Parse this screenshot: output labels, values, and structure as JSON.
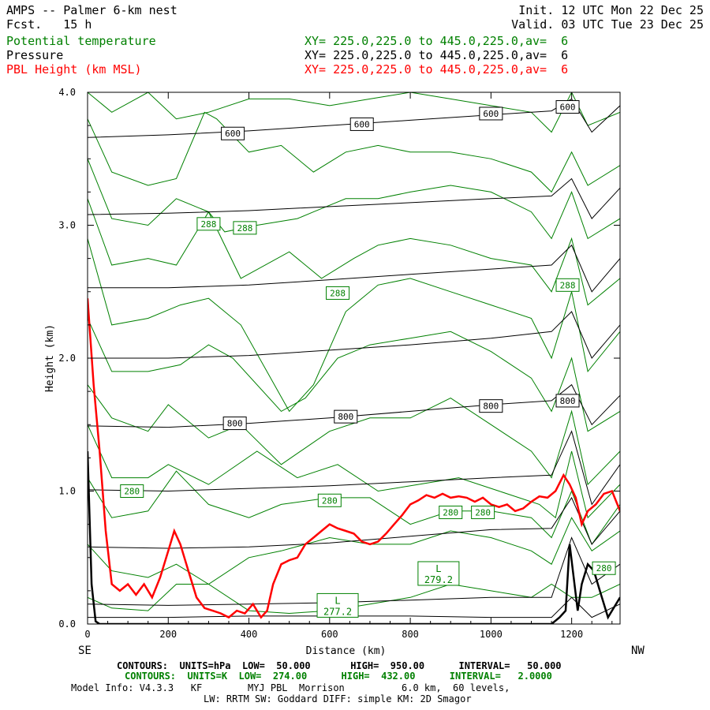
{
  "header": {
    "title": "AMPS -- Palmer 6-km nest",
    "fcst": "Fcst.   15 h",
    "init": "Init. 12 UTC Mon 22 Dec 25",
    "valid": "Valid. 03 UTC Tue 23 Dec 25",
    "fields": [
      {
        "name": "Potential temperature",
        "xy": "XY= 225.0,225.0 to 445.0,225.0,av=  6",
        "color": "#008000"
      },
      {
        "name": "Pressure",
        "xy": "XY= 225.0,225.0 to 445.0,225.0,av=  6",
        "color": "#000000"
      },
      {
        "name": "PBL Height (km MSL)",
        "xy": "XY= 225.0,225.0 to 445.0,225.0,av=  6",
        "color": "#ff0000"
      }
    ]
  },
  "chart_data": {
    "type": "line",
    "xlabel": "Distance (km)",
    "ylabel": "Height (km)",
    "xlim": [
      0,
      1320
    ],
    "ylim": [
      0.0,
      4.0
    ],
    "x_ticks": [
      0,
      200,
      400,
      600,
      800,
      1000,
      1200
    ],
    "y_ticks": [
      "0.0",
      "1.0",
      "2.0",
      "3.0",
      "4.0"
    ],
    "x_end_labels": {
      "left": "SE",
      "right": "NW"
    },
    "pressure_labels": [
      {
        "text": "600",
        "x": 360,
        "y": 3.69
      },
      {
        "text": "600",
        "x": 680,
        "y": 3.76
      },
      {
        "text": "600",
        "x": 1000,
        "y": 3.84
      },
      {
        "text": "600",
        "x": 1190,
        "y": 3.89
      },
      {
        "text": "800",
        "x": 365,
        "y": 1.51
      },
      {
        "text": "800",
        "x": 640,
        "y": 1.56
      },
      {
        "text": "800",
        "x": 1000,
        "y": 1.64
      },
      {
        "text": "800",
        "x": 1190,
        "y": 1.68
      }
    ],
    "theta_labels": [
      {
        "text": "288",
        "x": 300,
        "y": 3.01
      },
      {
        "text": "288",
        "x": 390,
        "y": 2.98
      },
      {
        "text": "288",
        "x": 620,
        "y": 2.49
      },
      {
        "text": "288",
        "x": 1190,
        "y": 2.55
      },
      {
        "text": "280",
        "x": 110,
        "y": 1.0
      },
      {
        "text": "280",
        "x": 600,
        "y": 0.93
      },
      {
        "text": "280",
        "x": 900,
        "y": 0.84
      },
      {
        "text": "280",
        "x": 980,
        "y": 0.84
      },
      {
        "text": "280",
        "x": 1280,
        "y": 0.42
      }
    ],
    "lows": [
      {
        "letter": "L",
        "value": "279.2",
        "x": 870,
        "y": 0.38
      },
      {
        "letter": "L",
        "value": "277.2",
        "x": 620,
        "y": 0.14
      }
    ],
    "pressure_levels": [
      {
        "x": [
          0,
          200,
          400,
          600,
          800,
          1000,
          1150,
          1200,
          1250,
          1320
        ],
        "y": [
          0.05,
          0.05,
          0.06,
          0.06,
          0.06,
          0.05,
          0.05,
          0.2,
          0.05,
          0.15
        ]
      },
      {
        "x": [
          0,
          200,
          400,
          600,
          800,
          1000,
          1150,
          1200,
          1250,
          1320
        ],
        "y": [
          0.15,
          0.14,
          0.15,
          0.16,
          0.18,
          0.2,
          0.2,
          0.65,
          0.3,
          0.45
        ]
      },
      {
        "x": [
          0,
          200,
          400,
          600,
          800,
          1000,
          1150,
          1200,
          1250,
          1320
        ],
        "y": [
          0.58,
          0.57,
          0.58,
          0.61,
          0.66,
          0.71,
          0.72,
          0.95,
          0.6,
          0.85
        ]
      },
      {
        "x": [
          0,
          200,
          400,
          600,
          800,
          1000,
          1150,
          1200,
          1250,
          1320
        ],
        "y": [
          1.01,
          1.0,
          1.02,
          1.04,
          1.07,
          1.1,
          1.12,
          1.45,
          0.9,
          1.2
        ]
      },
      {
        "x": [
          0,
          200,
          400,
          600,
          800,
          1000,
          1150,
          1200,
          1250,
          1320
        ],
        "y": [
          1.49,
          1.48,
          1.51,
          1.55,
          1.6,
          1.65,
          1.68,
          1.8,
          1.5,
          1.72
        ]
      },
      {
        "x": [
          0,
          200,
          400,
          600,
          800,
          1000,
          1150,
          1200,
          1250,
          1320
        ],
        "y": [
          2.0,
          2.0,
          2.02,
          2.06,
          2.1,
          2.15,
          2.2,
          2.35,
          2.0,
          2.25
        ]
      },
      {
        "x": [
          0,
          200,
          400,
          600,
          800,
          1000,
          1150,
          1200,
          1250,
          1320
        ],
        "y": [
          2.53,
          2.53,
          2.55,
          2.59,
          2.63,
          2.67,
          2.7,
          2.85,
          2.5,
          2.75
        ]
      },
      {
        "x": [
          0,
          200,
          400,
          600,
          800,
          1000,
          1150,
          1200,
          1250,
          1320
        ],
        "y": [
          3.08,
          3.09,
          3.11,
          3.14,
          3.17,
          3.2,
          3.22,
          3.35,
          3.05,
          3.28
        ]
      },
      {
        "x": [
          0,
          200,
          400,
          600,
          800,
          1000,
          1150,
          1200,
          1250,
          1320
        ],
        "y": [
          3.66,
          3.68,
          3.71,
          3.75,
          3.79,
          3.83,
          3.86,
          3.95,
          3.7,
          3.9
        ]
      }
    ],
    "theta_levels": [
      {
        "x": [
          0,
          60,
          150,
          220,
          300,
          400,
          500,
          600,
          700,
          800,
          900,
          1000,
          1100,
          1150,
          1200,
          1250,
          1320
        ],
        "y": [
          0.2,
          0.12,
          0.1,
          0.3,
          0.3,
          0.1,
          0.08,
          0.1,
          0.15,
          0.2,
          0.3,
          0.25,
          0.2,
          0.3,
          0.2,
          0.2,
          0.3
        ]
      },
      {
        "x": [
          0,
          60,
          150,
          220,
          300,
          400,
          480,
          600,
          700,
          800,
          900,
          1000,
          1100,
          1150,
          1200,
          1250,
          1320
        ],
        "y": [
          0.6,
          0.4,
          0.35,
          0.45,
          0.3,
          0.5,
          0.55,
          0.65,
          0.6,
          0.6,
          0.7,
          0.65,
          0.55,
          0.45,
          0.8,
          0.55,
          0.7
        ]
      },
      {
        "x": [
          0,
          60,
          150,
          220,
          300,
          400,
          480,
          600,
          700,
          800,
          900,
          1000,
          1100,
          1150,
          1200,
          1250,
          1320
        ],
        "y": [
          1.1,
          0.8,
          0.85,
          1.15,
          0.9,
          0.8,
          0.9,
          0.95,
          0.95,
          0.75,
          0.85,
          0.85,
          0.8,
          0.65,
          1.0,
          0.6,
          0.9
        ]
      },
      {
        "x": [
          0,
          60,
          150,
          200,
          300,
          420,
          520,
          620,
          720,
          820,
          920,
          1020,
          1120,
          1160,
          1200,
          1240,
          1320
        ],
        "y": [
          1.5,
          1.1,
          1.1,
          1.2,
          1.05,
          1.3,
          1.1,
          1.2,
          1.0,
          1.05,
          1.1,
          1.0,
          0.9,
          0.8,
          1.3,
          0.8,
          1.05
        ]
      },
      {
        "x": [
          0,
          60,
          150,
          200,
          300,
          380,
          480,
          600,
          700,
          800,
          900,
          1000,
          1100,
          1150,
          1200,
          1240,
          1320
        ],
        "y": [
          1.8,
          1.55,
          1.45,
          1.65,
          1.4,
          1.5,
          1.2,
          1.45,
          1.55,
          1.55,
          1.7,
          1.5,
          1.3,
          1.1,
          1.6,
          1.05,
          1.3
        ]
      },
      {
        "x": [
          0,
          60,
          150,
          230,
          300,
          360,
          480,
          540,
          620,
          700,
          800,
          900,
          1000,
          1100,
          1150,
          1200,
          1240,
          1320
        ],
        "y": [
          2.3,
          1.9,
          1.9,
          1.95,
          2.1,
          2.0,
          1.6,
          1.7,
          2.0,
          2.1,
          2.15,
          2.2,
          2.05,
          1.85,
          1.6,
          2.0,
          1.45,
          1.6
        ]
      },
      {
        "x": [
          0,
          60,
          150,
          230,
          300,
          380,
          500,
          560,
          640,
          720,
          800,
          900,
          1000,
          1100,
          1150,
          1200,
          1240,
          1320
        ],
        "y": [
          2.9,
          2.25,
          2.3,
          2.4,
          2.45,
          2.25,
          1.6,
          1.8,
          2.35,
          2.55,
          2.6,
          2.5,
          2.4,
          2.3,
          2.0,
          2.5,
          1.9,
          2.2
        ]
      },
      {
        "x": [
          0,
          60,
          150,
          220,
          300,
          380,
          500,
          580,
          660,
          720,
          800,
          900,
          1000,
          1100,
          1150,
          1200,
          1240,
          1320
        ],
        "y": [
          3.2,
          2.7,
          2.75,
          2.7,
          3.1,
          2.6,
          2.8,
          2.6,
          2.75,
          2.85,
          2.9,
          2.85,
          2.75,
          2.7,
          2.5,
          2.9,
          2.4,
          2.6
        ]
      },
      {
        "x": [
          0,
          60,
          150,
          220,
          300,
          340,
          420,
          520,
          560,
          640,
          720,
          800,
          900,
          1000,
          1100,
          1150,
          1200,
          1240,
          1320
        ],
        "y": [
          3.5,
          3.05,
          3.0,
          3.2,
          3.1,
          2.95,
          3.0,
          3.05,
          3.1,
          3.2,
          3.2,
          3.25,
          3.3,
          3.25,
          3.1,
          2.9,
          3.25,
          2.9,
          3.05
        ]
      },
      {
        "x": [
          0,
          60,
          150,
          220,
          290,
          320,
          400,
          480,
          560,
          640,
          720,
          800,
          900,
          1000,
          1100,
          1150,
          1200,
          1240,
          1320
        ],
        "y": [
          3.8,
          3.4,
          3.3,
          3.35,
          3.85,
          3.8,
          3.55,
          3.6,
          3.4,
          3.55,
          3.6,
          3.55,
          3.55,
          3.5,
          3.4,
          3.25,
          3.55,
          3.3,
          3.45
        ]
      },
      {
        "x": [
          0,
          60,
          150,
          220,
          300,
          400,
          500,
          600,
          700,
          800,
          900,
          1000,
          1100,
          1150,
          1200,
          1240,
          1320
        ],
        "y": [
          4.0,
          3.85,
          4.0,
          3.8,
          3.85,
          3.95,
          3.95,
          3.9,
          3.95,
          4.0,
          3.95,
          3.9,
          3.85,
          3.7,
          4.0,
          3.75,
          3.85
        ]
      }
    ],
    "pbl_height": {
      "x": [
        0,
        15,
        30,
        45,
        60,
        80,
        100,
        120,
        140,
        160,
        180,
        200,
        215,
        230,
        250,
        270,
        290,
        310,
        330,
        350,
        370,
        390,
        410,
        430,
        445,
        460,
        480,
        500,
        520,
        540,
        560,
        580,
        600,
        620,
        640,
        660,
        680,
        700,
        720,
        740,
        760,
        780,
        800,
        820,
        840,
        860,
        880,
        900,
        920,
        940,
        960,
        980,
        1000,
        1020,
        1040,
        1060,
        1080,
        1100,
        1120,
        1140,
        1160,
        1180,
        1195,
        1210,
        1225,
        1240,
        1260,
        1280,
        1300,
        1320
      ],
      "y": [
        2.45,
        1.8,
        1.3,
        0.7,
        0.3,
        0.25,
        0.3,
        0.22,
        0.3,
        0.2,
        0.35,
        0.55,
        0.7,
        0.6,
        0.4,
        0.2,
        0.12,
        0.1,
        0.08,
        0.05,
        0.1,
        0.08,
        0.15,
        0.05,
        0.1,
        0.3,
        0.45,
        0.48,
        0.5,
        0.6,
        0.65,
        0.7,
        0.75,
        0.72,
        0.7,
        0.68,
        0.62,
        0.6,
        0.62,
        0.68,
        0.75,
        0.82,
        0.9,
        0.93,
        0.97,
        0.95,
        0.98,
        0.95,
        0.96,
        0.95,
        0.92,
        0.95,
        0.9,
        0.88,
        0.9,
        0.85,
        0.87,
        0.92,
        0.96,
        0.95,
        1.0,
        1.12,
        1.05,
        0.95,
        0.75,
        0.85,
        0.9,
        0.98,
        1.0,
        0.85
      ]
    },
    "terrain": {
      "x": [
        0,
        10,
        20,
        30,
        40,
        60,
        100,
        200,
        300,
        400,
        500,
        600,
        700,
        800,
        900,
        1000,
        1100,
        1150,
        1170,
        1185,
        1195,
        1205,
        1215,
        1225,
        1240,
        1255,
        1270,
        1290,
        1300,
        1320
      ],
      "y": [
        1.3,
        0.3,
        0.02,
        0.0,
        0.0,
        0.0,
        0.0,
        0.0,
        0.0,
        0.0,
        0.0,
        0.0,
        0.0,
        0.0,
        0.0,
        0.0,
        0.0,
        0.0,
        0.05,
        0.1,
        0.6,
        0.35,
        0.1,
        0.3,
        0.45,
        0.4,
        0.25,
        0.05,
        0.1,
        0.2
      ]
    }
  },
  "footer": {
    "contours_black": "CONTOURS:  UNITS=hPa  LOW=  50.000       HIGH=  950.00      INTERVAL=   50.000",
    "contours_green": "CONTOURS:  UNITS=K  LOW=  274.00      HIGH=  432.00      INTERVAL=   2.0000",
    "model_info": "Model Info: V4.3.3   KF        MYJ PBL  Morrison          6.0 km,  60 levels,",
    "model_info2": "LW: RRTM SW: Goddard DIFF: simple KM: 2D Smagor"
  },
  "colors": {
    "pressure": "#000000",
    "theta": "#008000",
    "pbl": "#ff0000",
    "terrain": "#000000"
  }
}
